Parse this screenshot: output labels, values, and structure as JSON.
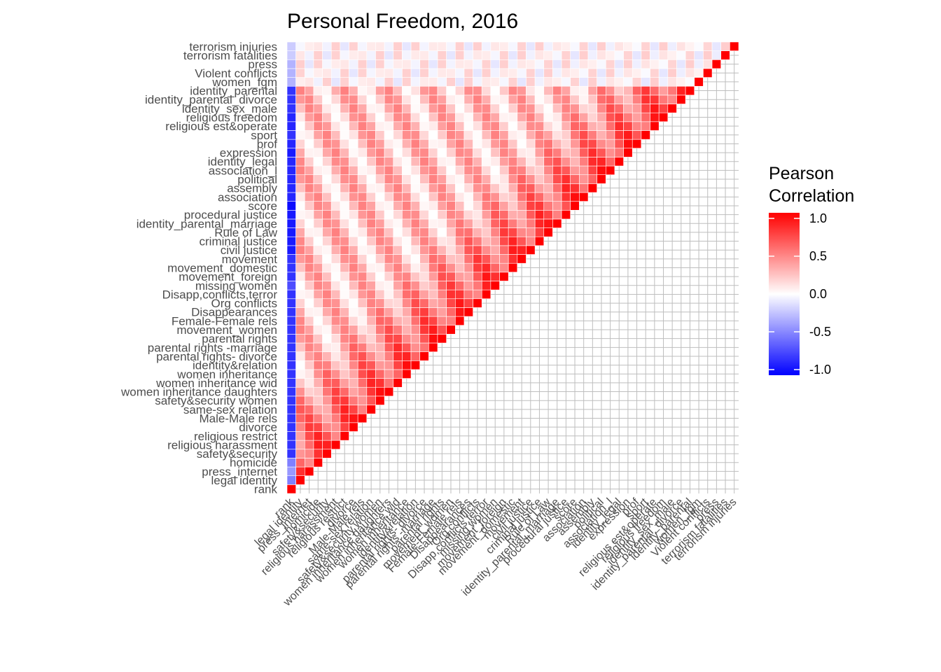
{
  "chart_data": {
    "type": "heatmap",
    "title": "Personal Freedom, 2016",
    "xlabel": "",
    "ylabel": "",
    "layout": "lower-triangle correlation matrix; cells drawn where row index >= column index; diagonal = 1.0",
    "grid": true,
    "variables": [
      "rank",
      "legal identity",
      "press_internet",
      "homicide",
      "safety&security",
      "religious harassment",
      "religious restrict",
      "divorce",
      "Male-Male rels",
      "same-sex relation",
      "safety&security women",
      "women inheritance daughters",
      "women inheritance wid",
      "women inheritance",
      "identity&relation",
      "parental rights- divorce",
      "parental rights -marriage",
      "parental rights",
      "movement_women",
      "Female-Female rels",
      "Disappearances",
      "Org conflicts",
      "Disapp,conflicts,terror",
      "missing women",
      "movement_foreign",
      "movement_domestic",
      "movement",
      "civil justice",
      "criminal justice",
      "Rule of Law",
      "identity_parental_marriage",
      "procedural justice",
      "score",
      "association",
      "assembly",
      "political",
      "association_l",
      "identity_legal",
      "expression",
      "prof",
      "sport",
      "religious est&operate",
      "religious freedom",
      "identity_sex_male",
      "identity_parental_divorce",
      "identity_parental",
      "women_fgm",
      "Violent conflicts",
      "press",
      "terrorism fatalities",
      "terrorism injuries"
    ],
    "rank_correlations": [
      1.0,
      -0.5,
      -0.4,
      -0.5,
      -0.8,
      -0.8,
      -0.8,
      -0.8,
      -0.8,
      -0.8,
      -0.8,
      -0.8,
      -0.8,
      -0.8,
      -0.8,
      -0.8,
      -0.8,
      -0.8,
      -0.8,
      -0.8,
      -0.8,
      -0.8,
      -0.8,
      -0.7,
      -0.8,
      -0.8,
      -0.8,
      -0.9,
      -0.9,
      -0.9,
      -0.9,
      -0.9,
      -0.95,
      -0.85,
      -0.85,
      -0.85,
      -0.85,
      -0.85,
      -0.9,
      -0.85,
      -0.8,
      -0.85,
      -0.85,
      -0.8,
      -0.8,
      -0.8,
      -0.3,
      -0.3,
      -0.3,
      -0.2,
      -0.2
    ],
    "value_range": [
      -1,
      1
    ],
    "legend": {
      "title": [
        "Pearson",
        "Correlation"
      ],
      "position": "right",
      "breaks": [
        1.0,
        0.5,
        0.0,
        -0.5,
        -1.0
      ],
      "break_labels": [
        "1.0",
        "0.5",
        "0.0",
        "-0.5",
        "-1.0"
      ]
    },
    "colors": {
      "low": "#0000ff",
      "mid": "#ffffff",
      "high": "#ff0000",
      "grid": "#bebebe"
    }
  }
}
